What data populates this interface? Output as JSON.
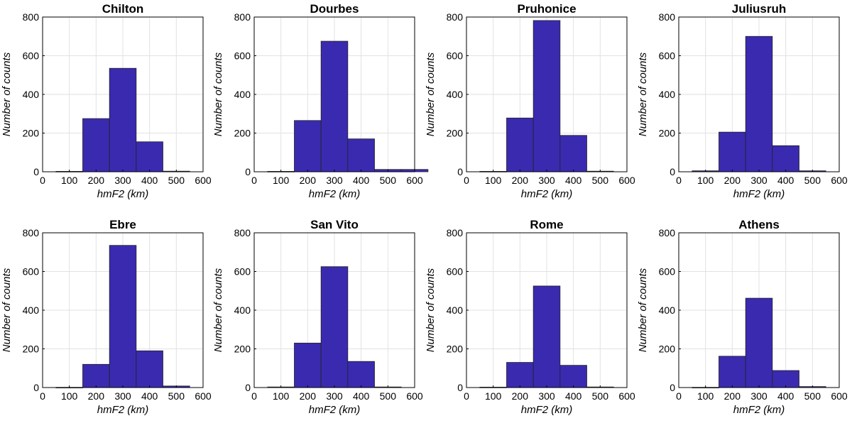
{
  "colors": {
    "bar_fill": "#3a2ab0",
    "bar_edge": "#222222",
    "grid": "#e2e2e2",
    "axis": "#000000"
  },
  "chart_data": [
    {
      "type": "bar",
      "title": "Chilton",
      "xlabel": "hmF2 (km)",
      "ylabel": "Number of counts",
      "xlim": [
        0,
        600
      ],
      "ylim": [
        0,
        800
      ],
      "xticks": [
        0,
        100,
        200,
        300,
        400,
        500,
        600
      ],
      "yticks": [
        0,
        200,
        400,
        600,
        800
      ],
      "bin_width": 100,
      "grid": true,
      "x": [
        100,
        200,
        300,
        400,
        500
      ],
      "values": [
        2,
        275,
        535,
        155,
        3
      ]
    },
    {
      "type": "bar",
      "title": "Dourbes",
      "xlabel": "hmF2 (km)",
      "ylabel": "Number of counts",
      "xlim": [
        0,
        600
      ],
      "ylim": [
        0,
        800
      ],
      "xticks": [
        0,
        100,
        200,
        300,
        400,
        500,
        600
      ],
      "yticks": [
        0,
        200,
        400,
        600,
        800
      ],
      "bin_width": 100,
      "grid": true,
      "x": [
        100,
        200,
        300,
        400,
        500,
        600
      ],
      "values": [
        2,
        265,
        675,
        170,
        12,
        12
      ]
    },
    {
      "type": "bar",
      "title": "Pruhonice",
      "xlabel": "hmF2 (km)",
      "ylabel": "Number of counts",
      "xlim": [
        0,
        600
      ],
      "ylim": [
        0,
        800
      ],
      "xticks": [
        0,
        100,
        200,
        300,
        400,
        500,
        600
      ],
      "yticks": [
        0,
        200,
        400,
        600,
        800
      ],
      "bin_width": 100,
      "grid": true,
      "x": [
        100,
        200,
        300,
        400,
        500
      ],
      "values": [
        2,
        278,
        782,
        188,
        3
      ]
    },
    {
      "type": "bar",
      "title": "Juliusruh",
      "xlabel": "hmF2 (km)",
      "ylabel": "Number of counts",
      "xlim": [
        0,
        600
      ],
      "ylim": [
        0,
        800
      ],
      "xticks": [
        0,
        100,
        200,
        300,
        400,
        500,
        600
      ],
      "yticks": [
        0,
        200,
        400,
        600,
        800
      ],
      "bin_width": 100,
      "grid": true,
      "x": [
        100,
        200,
        300,
        400,
        500
      ],
      "values": [
        5,
        205,
        700,
        135,
        5
      ]
    },
    {
      "type": "bar",
      "title": "Ebre",
      "xlabel": "hmF2 (km)",
      "ylabel": "Number of counts",
      "xlim": [
        0,
        600
      ],
      "ylim": [
        0,
        800
      ],
      "xticks": [
        0,
        100,
        200,
        300,
        400,
        500,
        600
      ],
      "yticks": [
        0,
        200,
        400,
        600,
        800
      ],
      "bin_width": 100,
      "grid": true,
      "x": [
        100,
        200,
        300,
        400,
        500
      ],
      "values": [
        1,
        120,
        735,
        190,
        8
      ]
    },
    {
      "type": "bar",
      "title": "San Vito",
      "xlabel": "hmF2 (km)",
      "ylabel": "Number of counts",
      "xlim": [
        0,
        600
      ],
      "ylim": [
        0,
        800
      ],
      "xticks": [
        0,
        100,
        200,
        300,
        400,
        500,
        600
      ],
      "yticks": [
        0,
        200,
        400,
        600,
        800
      ],
      "bin_width": 100,
      "grid": true,
      "x": [
        100,
        200,
        300,
        400,
        500
      ],
      "values": [
        3,
        230,
        625,
        135,
        3
      ]
    },
    {
      "type": "bar",
      "title": "Rome",
      "xlabel": "hmF2 (km)",
      "ylabel": "Number of counts",
      "xlim": [
        0,
        600
      ],
      "ylim": [
        0,
        800
      ],
      "xticks": [
        0,
        100,
        200,
        300,
        400,
        500,
        600
      ],
      "yticks": [
        0,
        200,
        400,
        600,
        800
      ],
      "bin_width": 100,
      "grid": true,
      "x": [
        100,
        200,
        300,
        400,
        500
      ],
      "values": [
        2,
        130,
        525,
        115,
        3
      ]
    },
    {
      "type": "bar",
      "title": "Athens",
      "xlabel": "hmF2 (km)",
      "ylabel": "Number of counts",
      "xlim": [
        0,
        600
      ],
      "ylim": [
        0,
        800
      ],
      "xticks": [
        0,
        100,
        200,
        300,
        400,
        500,
        600
      ],
      "yticks": [
        0,
        200,
        400,
        600,
        800
      ],
      "bin_width": 100,
      "grid": true,
      "x": [
        100,
        200,
        300,
        400,
        500
      ],
      "values": [
        1,
        162,
        462,
        88,
        5
      ]
    }
  ]
}
